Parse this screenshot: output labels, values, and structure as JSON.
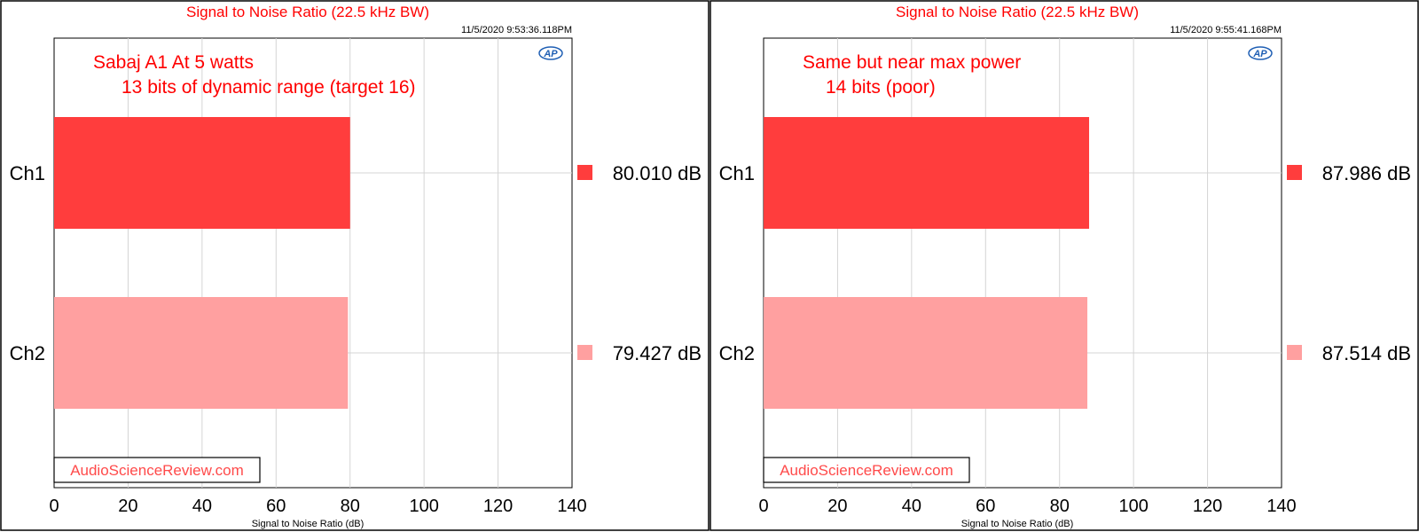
{
  "panels": [
    {
      "title": "Signal to Noise Ratio (22.5 kHz BW)",
      "timestamp": "11/5/2020 9:53:36.118PM",
      "logo": "AP",
      "annotations": [
        "Sabaj A1 At 5 watts",
        "13 bits of dynamic range (target 16)"
      ],
      "watermark": "AudioScienceReview.com",
      "chart_data": {
        "type": "bar",
        "orientation": "horizontal",
        "title": "Signal to Noise Ratio (22.5 kHz BW)",
        "xlabel": "Signal to Noise Ratio (dB)",
        "xlim": [
          0,
          140
        ],
        "xticks": [
          "0",
          "20",
          "40",
          "60",
          "80",
          "100",
          "120",
          "140"
        ],
        "grid": true,
        "categories": [
          "Ch1",
          "Ch2"
        ],
        "values": [
          80.01,
          79.427
        ],
        "value_labels": [
          "80.010  dB",
          "79.427  dB"
        ],
        "colors": [
          "#ff3d3d",
          "#ffa0a0"
        ]
      }
    },
    {
      "title": "Signal to Noise Ratio (22.5 kHz BW)",
      "timestamp": "11/5/2020 9:55:41.168PM",
      "logo": "AP",
      "annotations": [
        "Same but near max power",
        "14 bits (poor)"
      ],
      "watermark": "AudioScienceReview.com",
      "chart_data": {
        "type": "bar",
        "orientation": "horizontal",
        "title": "Signal to Noise Ratio (22.5 kHz BW)",
        "xlabel": "Signal to Noise Ratio (dB)",
        "xlim": [
          0,
          140
        ],
        "xticks": [
          "0",
          "20",
          "40",
          "60",
          "80",
          "100",
          "120",
          "140"
        ],
        "grid": true,
        "categories": [
          "Ch1",
          "Ch2"
        ],
        "values": [
          87.986,
          87.514
        ],
        "value_labels": [
          "87.986  dB",
          "87.514  dB"
        ],
        "colors": [
          "#ff3d3d",
          "#ffa0a0"
        ]
      }
    }
  ]
}
